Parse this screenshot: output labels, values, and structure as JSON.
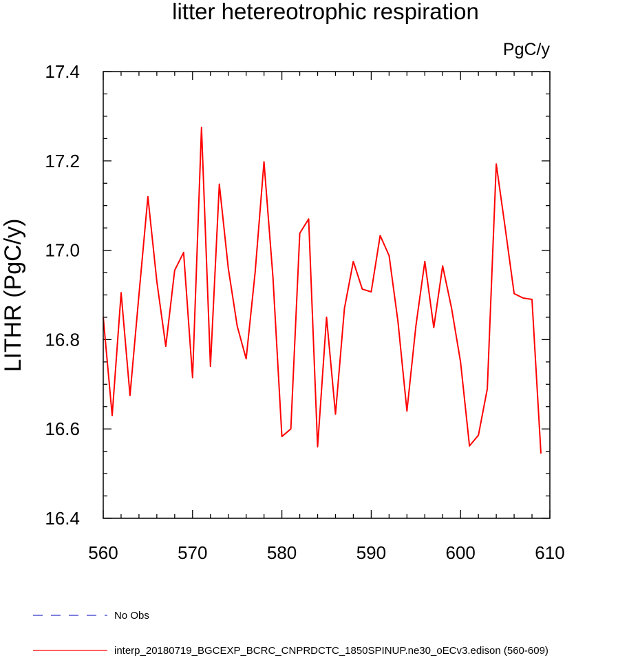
{
  "chart_data": {
    "type": "line",
    "title": "litter hetereotrophic respiration",
    "units_label": "PgC/y",
    "xlabel": "",
    "ylabel": "LITHR  (PgC/y)",
    "xlim": [
      560,
      610
    ],
    "ylim": [
      16.4,
      17.4
    ],
    "x_ticks": [
      560,
      570,
      580,
      590,
      600,
      610
    ],
    "x_tick_labels": [
      "560",
      "570",
      "580",
      "590",
      "600",
      "610"
    ],
    "y_ticks": [
      16.4,
      16.6,
      16.8,
      17.0,
      17.2,
      17.4
    ],
    "y_tick_labels": [
      "16.4",
      "16.6",
      "16.8",
      "17.0",
      "17.2",
      "17.4"
    ],
    "grid": false,
    "legend_position": "bottom",
    "series": [
      {
        "name": "interp_20180719_BGCEXP_BCRC_CNPRDCTC_1850SPINUP.ne30_oECv3.edison (560-609)",
        "color": "#ff0000",
        "style": "solid",
        "x": [
          560,
          561,
          562,
          563,
          564,
          565,
          566,
          567,
          568,
          569,
          570,
          571,
          572,
          573,
          574,
          575,
          576,
          577,
          578,
          579,
          580,
          581,
          582,
          583,
          584,
          585,
          586,
          587,
          588,
          589,
          590,
          591,
          592,
          593,
          594,
          595,
          596,
          597,
          598,
          599,
          600,
          601,
          602,
          603,
          604,
          605,
          606,
          607,
          608,
          609
        ],
        "values": [
          16.85,
          16.63,
          16.905,
          16.675,
          16.9,
          17.12,
          16.93,
          16.785,
          16.955,
          16.995,
          16.715,
          17.275,
          16.74,
          17.148,
          16.96,
          16.83,
          16.757,
          16.95,
          17.198,
          16.94,
          16.583,
          16.6,
          17.038,
          17.07,
          16.56,
          16.85,
          16.633,
          16.87,
          16.975,
          16.913,
          16.907,
          17.033,
          16.988,
          16.84,
          16.64,
          16.83,
          16.975,
          16.827,
          16.965,
          16.87,
          16.75,
          16.562,
          16.586,
          16.69,
          17.193,
          17.05,
          16.903,
          16.893,
          16.89,
          16.545
        ]
      },
      {
        "name": "No Obs",
        "color": "#3333cc",
        "style": "dashed",
        "x": [],
        "values": []
      }
    ]
  }
}
